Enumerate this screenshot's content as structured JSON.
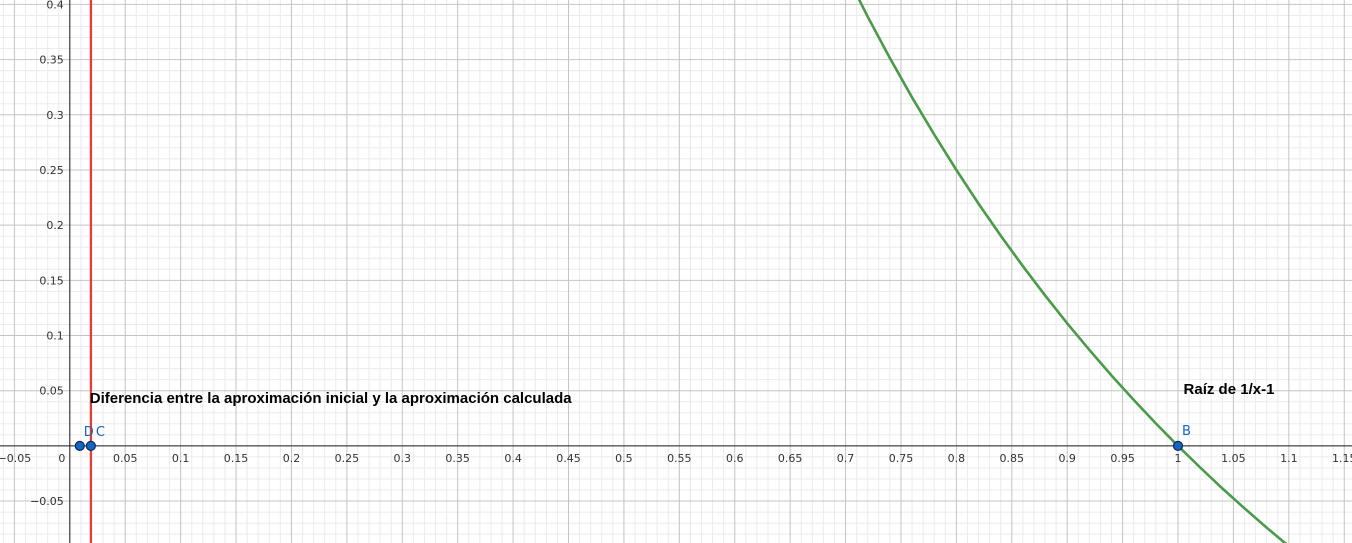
{
  "chart_data": {
    "type": "line",
    "xlim": [
      -0.063,
      1.157
    ],
    "ylim": [
      -0.088,
      0.404
    ],
    "grid": "major and minor",
    "x_tick_labels": [
      "−0.05",
      "0",
      "0.05",
      "0.1",
      "0.15",
      "0.2",
      "0.25",
      "0.3",
      "0.35",
      "0.4",
      "0.45",
      "0.5",
      "0.55",
      "0.6",
      "0.65",
      "0.7",
      "0.75",
      "0.8",
      "0.85",
      "0.9",
      "0.95",
      "1",
      "1.05",
      "1.1",
      "1.15"
    ],
    "y_tick_labels": [
      "−0.05",
      "0.05",
      "0.1",
      "0.15",
      "0.2",
      "0.25",
      "0.3",
      "0.35",
      "0.4"
    ],
    "curve": {
      "function": "1/x - 1",
      "color": "#4a9a4a",
      "x": [
        0.7,
        0.72,
        0.74,
        0.76,
        0.78,
        0.8,
        0.82,
        0.84,
        0.86,
        0.88,
        0.9,
        0.92,
        0.94,
        0.96,
        0.98,
        1.0,
        1.02,
        1.04,
        1.06,
        1.08,
        1.1
      ],
      "y": [
        0.4286,
        0.3889,
        0.3514,
        0.3158,
        0.2821,
        0.25,
        0.2195,
        0.1905,
        0.1628,
        0.1364,
        0.1111,
        0.087,
        0.0638,
        0.0417,
        0.0204,
        0.0,
        -0.0196,
        -0.0385,
        -0.0566,
        -0.0741,
        -0.0909
      ]
    },
    "vertical_line": {
      "x": 0.019,
      "color": "#e53935"
    },
    "points": [
      {
        "label": "D",
        "x": 0.009,
        "y": 0
      },
      {
        "label": "C",
        "x": 0.019,
        "y": 0
      },
      {
        "label": "B",
        "x": 1.0,
        "y": 0
      }
    ],
    "point_color": "#1565c0",
    "annotations": [
      {
        "text": "Diferencia entre la aproximación inicial y la aproximación calculada",
        "x": 0.018,
        "y": 0.039
      },
      {
        "text": "Raíz de 1/x-1",
        "x": 1.005,
        "y": 0.047
      }
    ]
  }
}
